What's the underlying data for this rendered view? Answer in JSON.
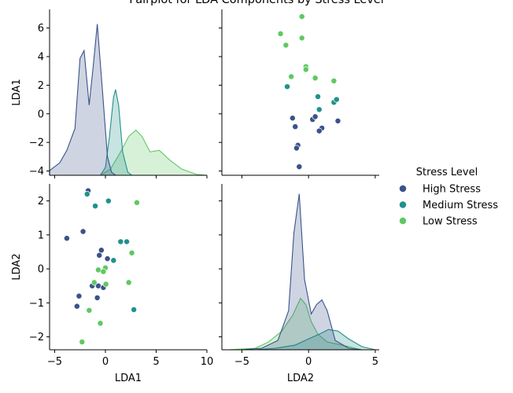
{
  "chart_data": {
    "type": "scatter",
    "title": "Pairplot for LDA Components by Stress Level",
    "variables": [
      "LDA1",
      "LDA2"
    ],
    "axes": {
      "LDA1": {
        "ticks_x": [
          -5,
          0,
          5,
          10
        ],
        "ticks_y": [
          -4,
          -2,
          0,
          2,
          4,
          6
        ],
        "range_x": [
          -5.5,
          10
        ],
        "range_y": [
          -4.3,
          7.3
        ]
      },
      "LDA2": {
        "ticks_x": [
          -5,
          0,
          5
        ],
        "ticks_y": [
          -2,
          -1,
          0,
          1,
          2
        ],
        "range_x": [
          -6.5,
          5.3
        ],
        "range_y": [
          -2.38,
          2.5
        ]
      }
    },
    "legend": {
      "title": "Stress Level",
      "placement": "right",
      "entries": [
        "High Stress",
        "Medium Stress",
        "Low Stress"
      ]
    },
    "colors": {
      "High Stress": "#3b528b",
      "Medium Stress": "#21918c",
      "Low Stress": "#5ec962"
    },
    "series": [
      {
        "name": "High Stress",
        "points": [
          [
            -1.7,
            2.3
          ],
          [
            -0.6,
            0.4
          ],
          [
            0.2,
            0.3
          ],
          [
            -0.4,
            0.55
          ],
          [
            -3.8,
            0.9
          ],
          [
            -2.2,
            1.1
          ],
          [
            -2.8,
            -1.1
          ],
          [
            -0.7,
            -0.5
          ],
          [
            -1.3,
            -0.5
          ],
          [
            -0.2,
            -0.55
          ],
          [
            -2.6,
            -0.8
          ],
          [
            -0.8,
            -0.85
          ]
        ]
      },
      {
        "name": "Medium Stress",
        "points": [
          [
            -1.8,
            2.2
          ],
          [
            0.3,
            2.0
          ],
          [
            -1.0,
            1.85
          ],
          [
            2.1,
            0.8
          ],
          [
            1.5,
            0.8
          ],
          [
            0.8,
            0.25
          ],
          [
            2.8,
            -1.2
          ]
        ]
      },
      {
        "name": "Low Stress",
        "points": [
          [
            3.1,
            1.95
          ],
          [
            2.6,
            0.47
          ],
          [
            -0.7,
            -0.03
          ],
          [
            0.0,
            0.03
          ],
          [
            -0.2,
            -0.08
          ],
          [
            -1.1,
            -0.4
          ],
          [
            0.05,
            -0.45
          ],
          [
            -0.5,
            -1.6
          ],
          [
            -2.3,
            -2.15
          ],
          [
            -1.6,
            -1.22
          ],
          [
            2.3,
            -0.4
          ]
        ]
      }
    ],
    "kde": {
      "LDA1": {
        "High Stress": [
          [
            -5.5,
            0.03
          ],
          [
            -4.5,
            0.08
          ],
          [
            -3.8,
            0.16
          ],
          [
            -3.0,
            0.3
          ],
          [
            -2.5,
            0.75
          ],
          [
            -2.1,
            0.8
          ],
          [
            -1.6,
            0.45
          ],
          [
            -1.2,
            0.7
          ],
          [
            -0.8,
            0.97
          ],
          [
            -0.3,
            0.55
          ],
          [
            0.2,
            0.12
          ],
          [
            0.6,
            0.02
          ],
          [
            1.0,
            0.0
          ]
        ],
        "Medium Stress": [
          [
            -0.5,
            0.0
          ],
          [
            0.0,
            0.05
          ],
          [
            0.4,
            0.25
          ],
          [
            0.8,
            0.5
          ],
          [
            1.0,
            0.55
          ],
          [
            1.3,
            0.45
          ],
          [
            1.7,
            0.15
          ],
          [
            2.2,
            0.02
          ],
          [
            2.6,
            0.0
          ]
        ],
        "Low Stress": [
          [
            -0.5,
            0.0
          ],
          [
            0.5,
            0.04
          ],
          [
            1.5,
            0.15
          ],
          [
            2.3,
            0.25
          ],
          [
            3.0,
            0.29
          ],
          [
            3.6,
            0.25
          ],
          [
            4.4,
            0.15
          ],
          [
            5.3,
            0.16
          ],
          [
            6.3,
            0.1
          ],
          [
            7.5,
            0.04
          ],
          [
            9.0,
            0.005
          ],
          [
            10.0,
            0.0
          ]
        ]
      },
      "LDA2": {
        "High Stress": [
          [
            -5.0,
            0.0
          ],
          [
            -3.5,
            0.01
          ],
          [
            -2.3,
            0.06
          ],
          [
            -1.5,
            0.25
          ],
          [
            -1.1,
            0.75
          ],
          [
            -0.7,
            1.0
          ],
          [
            -0.3,
            0.45
          ],
          [
            0.2,
            0.23
          ],
          [
            0.6,
            0.29
          ],
          [
            1.0,
            0.32
          ],
          [
            1.4,
            0.25
          ],
          [
            2.0,
            0.06
          ],
          [
            3.0,
            0.01
          ],
          [
            4.0,
            0.0
          ]
        ],
        "Medium Stress": [
          [
            -4.0,
            0.0
          ],
          [
            -2.5,
            0.01
          ],
          [
            -1.0,
            0.03
          ],
          [
            0.0,
            0.07
          ],
          [
            0.8,
            0.1
          ],
          [
            1.5,
            0.13
          ],
          [
            2.2,
            0.12
          ],
          [
            3.0,
            0.07
          ],
          [
            4.0,
            0.02
          ],
          [
            5.0,
            0.0
          ]
        ],
        "Low Stress": [
          [
            -6.0,
            0.0
          ],
          [
            -4.0,
            0.01
          ],
          [
            -3.0,
            0.05
          ],
          [
            -2.0,
            0.12
          ],
          [
            -1.2,
            0.22
          ],
          [
            -0.6,
            0.33
          ],
          [
            -0.2,
            0.29
          ],
          [
            0.2,
            0.18
          ],
          [
            0.7,
            0.1
          ],
          [
            1.4,
            0.05
          ],
          [
            2.5,
            0.03
          ],
          [
            4.0,
            0.0
          ]
        ]
      }
    },
    "scatter_LDA1_LDA2": {
      "High Stress": [
        [
          -1.2,
          -0.3
        ],
        [
          -1.0,
          -0.9
        ],
        [
          -0.8,
          -2.2
        ],
        [
          -0.9,
          -2.4
        ],
        [
          -0.7,
          -3.7
        ],
        [
          0.3,
          -0.4
        ],
        [
          0.5,
          -0.2
        ],
        [
          1.0,
          -1.0
        ],
        [
          0.8,
          -1.2
        ],
        [
          2.2,
          -0.5
        ]
      ],
      "Medium Stress": [
        [
          -1.6,
          1.9
        ],
        [
          0.7,
          1.2
        ],
        [
          0.8,
          0.3
        ],
        [
          1.9,
          0.8
        ],
        [
          2.1,
          1.0
        ]
      ],
      "Low Stress": [
        [
          -0.5,
          6.8
        ],
        [
          -2.1,
          5.6
        ],
        [
          -0.5,
          5.3
        ],
        [
          -1.7,
          4.8
        ],
        [
          -0.2,
          3.3
        ],
        [
          -0.2,
          3.1
        ],
        [
          -1.3,
          2.6
        ],
        [
          0.5,
          2.5
        ],
        [
          1.9,
          2.3
        ]
      ]
    }
  }
}
